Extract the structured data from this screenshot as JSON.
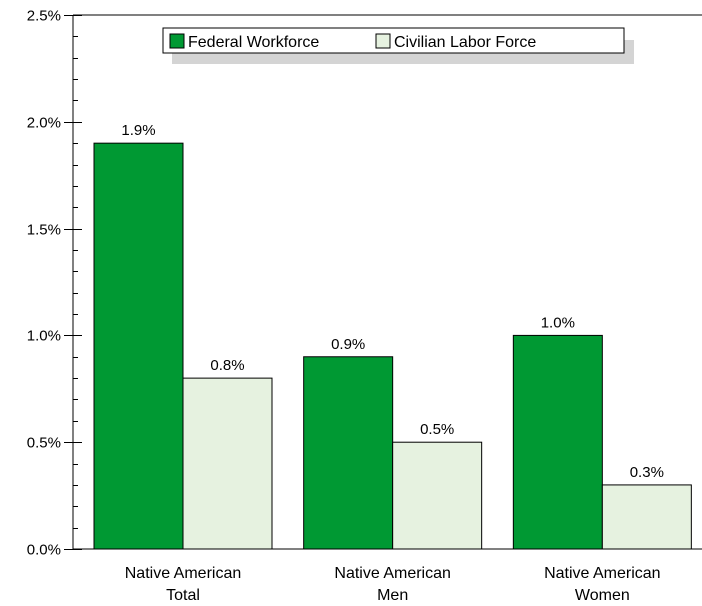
{
  "chart_data": {
    "type": "bar",
    "title": "",
    "xlabel": "",
    "ylabel": "",
    "ylim": [
      0,
      0.025
    ],
    "y_ticks": [
      "0.0%",
      "0.5%",
      "1.0%",
      "1.5%",
      "2.0%",
      "2.5%"
    ],
    "y_tick_values": [
      0,
      0.005,
      0.01,
      0.015,
      0.02,
      0.025
    ],
    "categories": [
      [
        "Native American",
        "Total"
      ],
      [
        "Native American",
        "Men"
      ],
      [
        "Native American",
        "Women"
      ]
    ],
    "series": [
      {
        "name": "Federal Workforce",
        "values": [
          0.019,
          0.009,
          0.01
        ],
        "labels": [
          "1.9%",
          "0.9%",
          "1.0%"
        ],
        "color": "#009933"
      },
      {
        "name": "Civilian Labor Force",
        "values": [
          0.008,
          0.005,
          0.003
        ],
        "labels": [
          "0.8%",
          "0.5%",
          "0.3%"
        ],
        "color": "#e6f2e0"
      }
    ],
    "grid": false,
    "legend_position": "top"
  }
}
